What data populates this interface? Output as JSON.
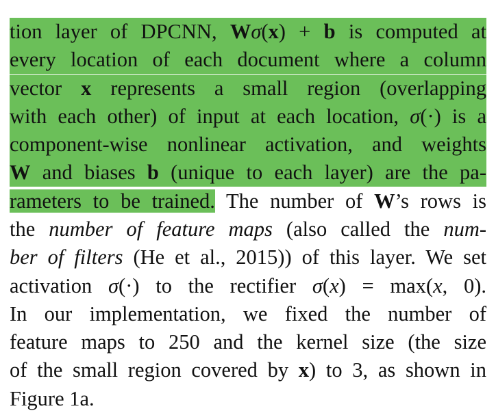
{
  "highlight_color": "#6bbf59",
  "lines": [
    {
      "id": "l1",
      "parts": [
        {
          "t": "tion layer of DPCNN, "
        },
        {
          "t": "W",
          "s": "b"
        },
        {
          "t": "σ",
          "s": "i"
        },
        {
          "t": "("
        },
        {
          "t": "x",
          "s": "b"
        },
        {
          "t": ") + "
        },
        {
          "t": "b",
          "s": "b"
        },
        {
          "t": " is computed at"
        }
      ]
    },
    {
      "id": "l2",
      "parts": [
        {
          "t": "every location of each document where a column"
        }
      ]
    },
    {
      "id": "l3",
      "parts": [
        {
          "t": "vector "
        },
        {
          "t": "x",
          "s": "b"
        },
        {
          "t": " represents a small region (overlapping"
        }
      ]
    },
    {
      "id": "l4",
      "parts": [
        {
          "t": "with each other) of input at each location, "
        },
        {
          "t": "σ",
          "s": "i"
        },
        {
          "t": "(·) is a"
        }
      ]
    },
    {
      "id": "l5",
      "parts": [
        {
          "t": "component-wise nonlinear activation, and weights"
        }
      ]
    },
    {
      "id": "l6",
      "parts": [
        {
          "t": "W",
          "s": "b"
        },
        {
          "t": " and biases "
        },
        {
          "t": "b",
          "s": "b"
        },
        {
          "t": " (unique to each layer) are the pa-"
        }
      ]
    },
    {
      "id": "l7a",
      "parts": [
        {
          "t": "rameters to be trained."
        }
      ]
    },
    {
      "id": "l7b",
      "parts": [
        {
          "t": " The number of "
        },
        {
          "t": "W",
          "s": "b"
        },
        {
          "t": "’s rows is"
        }
      ]
    },
    {
      "id": "l8",
      "parts": [
        {
          "t": "the "
        },
        {
          "t": "number of feature maps",
          "s": "i"
        },
        {
          "t": " (also called the "
        },
        {
          "t": "num-",
          "s": "i"
        }
      ]
    },
    {
      "id": "l9",
      "parts": [
        {
          "t": "ber of filters",
          "s": "i"
        },
        {
          "t": " (He et al., 2015)) of this layer. We set"
        }
      ]
    },
    {
      "id": "l10",
      "parts": [
        {
          "t": "activation "
        },
        {
          "t": "σ",
          "s": "i"
        },
        {
          "t": "(·) to the rectifier "
        },
        {
          "t": "σ",
          "s": "i"
        },
        {
          "t": "("
        },
        {
          "t": "x",
          "s": "i"
        },
        {
          "t": ") = max("
        },
        {
          "t": "x",
          "s": "i"
        },
        {
          "t": ", 0)."
        }
      ]
    },
    {
      "id": "l11",
      "parts": [
        {
          "t": "In our implementation, we fixed the number of"
        }
      ]
    },
    {
      "id": "l12",
      "parts": [
        {
          "t": "feature maps to 250 and the kernel size (the size"
        }
      ]
    },
    {
      "id": "l13",
      "parts": [
        {
          "t": "of the small region covered by "
        },
        {
          "t": "x",
          "s": "b"
        },
        {
          "t": ") to 3, as shown in"
        }
      ]
    },
    {
      "id": "l14",
      "parts": [
        {
          "t": "Figure 1a."
        }
      ]
    }
  ]
}
